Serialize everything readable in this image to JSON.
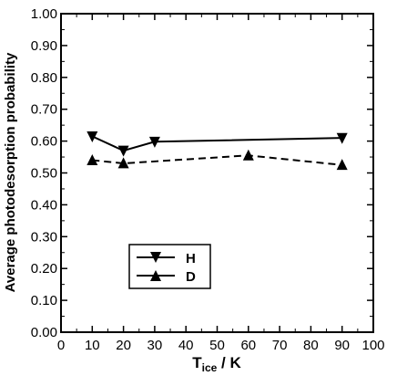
{
  "chart_data": {
    "type": "line",
    "xlabel_main": "T",
    "xlabel_sub": "ice",
    "xlabel_unit": " / K",
    "ylabel": "Average photodesorption probability",
    "xlim": [
      0,
      100
    ],
    "ylim": [
      0,
      1
    ],
    "x_ticks": [
      "0",
      "10",
      "20",
      "30",
      "40",
      "50",
      "60",
      "70",
      "80",
      "90",
      "100"
    ],
    "y_ticks": [
      "0.00",
      "0.10",
      "0.20",
      "0.30",
      "0.40",
      "0.50",
      "0.60",
      "0.70",
      "0.80",
      "0.90",
      "1.00"
    ],
    "grid": false,
    "legend_position": "lower-left",
    "series": [
      {
        "name": "H",
        "marker": "triangle-down",
        "line": "solid",
        "color": "#000000",
        "x": [
          10,
          20,
          30,
          90
        ],
        "y": [
          0.615,
          0.57,
          0.598,
          0.61
        ]
      },
      {
        "name": "D",
        "marker": "triangle-up",
        "line": "dashed",
        "color": "#000000",
        "x": [
          10,
          20,
          60,
          90
        ],
        "y": [
          0.54,
          0.53,
          0.555,
          0.525
        ]
      }
    ]
  }
}
